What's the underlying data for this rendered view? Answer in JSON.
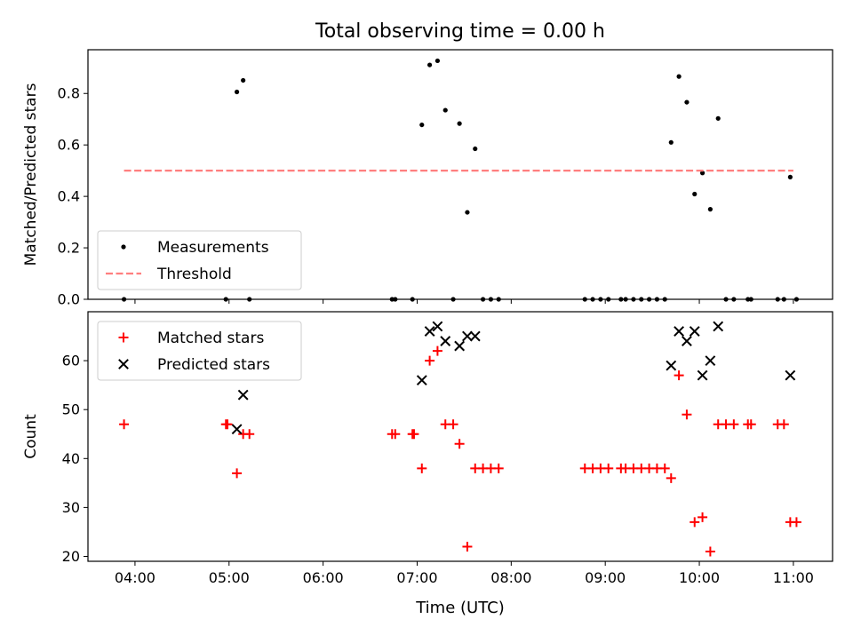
{
  "figure": {
    "title": "Total observing time = 0.00 h",
    "xlabel": "Time (UTC)",
    "x_ticks": [
      "04:00",
      "05:00",
      "06:00",
      "07:00",
      "08:00",
      "09:00",
      "10:00",
      "11:00"
    ]
  },
  "chart_data": [
    {
      "type": "scatter",
      "ylabel": "Matched/Predicted stars",
      "xlim": [
        "03:30",
        "11:25"
      ],
      "ylim": [
        0,
        0.97
      ],
      "y_ticks": [
        "0.0",
        "0.2",
        "0.4",
        "0.6",
        "0.8"
      ],
      "legend_position": "lower-left",
      "series": [
        {
          "name": "Measurements",
          "style": "dot",
          "color": "#000000",
          "points": [
            [
              "03:53",
              0.0
            ],
            [
              "04:58",
              0.0
            ],
            [
              "05:05",
              0.806
            ],
            [
              "05:09",
              0.851
            ],
            [
              "05:13",
              0.0
            ],
            [
              "06:44",
              0.0
            ],
            [
              "06:46",
              0.0
            ],
            [
              "06:57",
              0.0
            ],
            [
              "07:03",
              0.678
            ],
            [
              "07:08",
              0.911
            ],
            [
              "07:13",
              0.927
            ],
            [
              "07:18",
              0.735
            ],
            [
              "07:23",
              0.0
            ],
            [
              "07:27",
              0.683
            ],
            [
              "07:32",
              0.338
            ],
            [
              "07:37",
              0.585
            ],
            [
              "07:42",
              0.0
            ],
            [
              "07:47",
              0.0
            ],
            [
              "07:52",
              0.0
            ],
            [
              "08:47",
              0.0
            ],
            [
              "08:52",
              0.0
            ],
            [
              "08:57",
              0.0
            ],
            [
              "09:02",
              0.0
            ],
            [
              "09:10",
              0.0
            ],
            [
              "09:13",
              0.0
            ],
            [
              "09:18",
              0.0
            ],
            [
              "09:23",
              0.0
            ],
            [
              "09:28",
              0.0
            ],
            [
              "09:33",
              0.0
            ],
            [
              "09:38",
              0.0
            ],
            [
              "09:42",
              0.61
            ],
            [
              "09:47",
              0.866
            ],
            [
              "09:52",
              0.766
            ],
            [
              "09:57",
              0.409
            ],
            [
              "10:02",
              0.491
            ],
            [
              "10:07",
              0.35
            ],
            [
              "10:12",
              0.703
            ],
            [
              "10:17",
              0.0
            ],
            [
              "10:22",
              0.0
            ],
            [
              "10:31",
              0.0
            ],
            [
              "10:33",
              0.0
            ],
            [
              "10:50",
              0.0
            ],
            [
              "10:54",
              0.0
            ],
            [
              "10:58",
              0.475
            ],
            [
              "11:02",
              0.0
            ]
          ]
        },
        {
          "name": "Threshold",
          "style": "dashed-line",
          "color": "#ff7f7f",
          "points": [
            [
              "03:53",
              0.5
            ],
            [
              "11:00",
              0.5
            ]
          ]
        }
      ]
    },
    {
      "type": "scatter",
      "ylabel": "Count",
      "xlim": [
        "03:30",
        "11:25"
      ],
      "ylim": [
        19,
        70
      ],
      "y_ticks": [
        "20",
        "30",
        "40",
        "50",
        "60"
      ],
      "legend_position": "upper-left",
      "series": [
        {
          "name": "Matched stars",
          "style": "plus",
          "color": "#ff0000",
          "points": [
            [
              "03:53",
              47
            ],
            [
              "04:58",
              47
            ],
            [
              "04:59",
              47
            ],
            [
              "05:05",
              37
            ],
            [
              "05:09",
              45
            ],
            [
              "05:13",
              45
            ],
            [
              "06:44",
              45
            ],
            [
              "06:46",
              45
            ],
            [
              "06:57",
              45
            ],
            [
              "06:58",
              45
            ],
            [
              "07:03",
              38
            ],
            [
              "07:08",
              60
            ],
            [
              "07:13",
              62
            ],
            [
              "07:18",
              47
            ],
            [
              "07:23",
              47
            ],
            [
              "07:27",
              43
            ],
            [
              "07:32",
              22
            ],
            [
              "07:37",
              38
            ],
            [
              "07:42",
              38
            ],
            [
              "07:47",
              38
            ],
            [
              "07:52",
              38
            ],
            [
              "08:47",
              38
            ],
            [
              "08:52",
              38
            ],
            [
              "08:57",
              38
            ],
            [
              "09:02",
              38
            ],
            [
              "09:10",
              38
            ],
            [
              "09:13",
              38
            ],
            [
              "09:18",
              38
            ],
            [
              "09:23",
              38
            ],
            [
              "09:28",
              38
            ],
            [
              "09:33",
              38
            ],
            [
              "09:38",
              38
            ],
            [
              "09:42",
              36
            ],
            [
              "09:47",
              57
            ],
            [
              "09:52",
              49
            ],
            [
              "09:57",
              27
            ],
            [
              "10:02",
              28
            ],
            [
              "10:07",
              21
            ],
            [
              "10:12",
              47
            ],
            [
              "10:17",
              47
            ],
            [
              "10:22",
              47
            ],
            [
              "10:31",
              47
            ],
            [
              "10:33",
              47
            ],
            [
              "10:50",
              47
            ],
            [
              "10:54",
              47
            ],
            [
              "10:58",
              27
            ],
            [
              "11:02",
              27
            ]
          ]
        },
        {
          "name": "Predicted stars",
          "style": "x",
          "color": "#000000",
          "points": [
            [
              "05:05",
              46
            ],
            [
              "05:09",
              53
            ],
            [
              "07:03",
              56
            ],
            [
              "07:08",
              66
            ],
            [
              "07:13",
              67
            ],
            [
              "07:18",
              64
            ],
            [
              "07:27",
              63
            ],
            [
              "07:32",
              65
            ],
            [
              "07:37",
              65
            ],
            [
              "09:42",
              59
            ],
            [
              "09:47",
              66
            ],
            [
              "09:52",
              64
            ],
            [
              "09:57",
              66
            ],
            [
              "10:02",
              57
            ],
            [
              "10:07",
              60
            ],
            [
              "10:12",
              67
            ],
            [
              "10:58",
              57
            ]
          ]
        }
      ]
    }
  ]
}
